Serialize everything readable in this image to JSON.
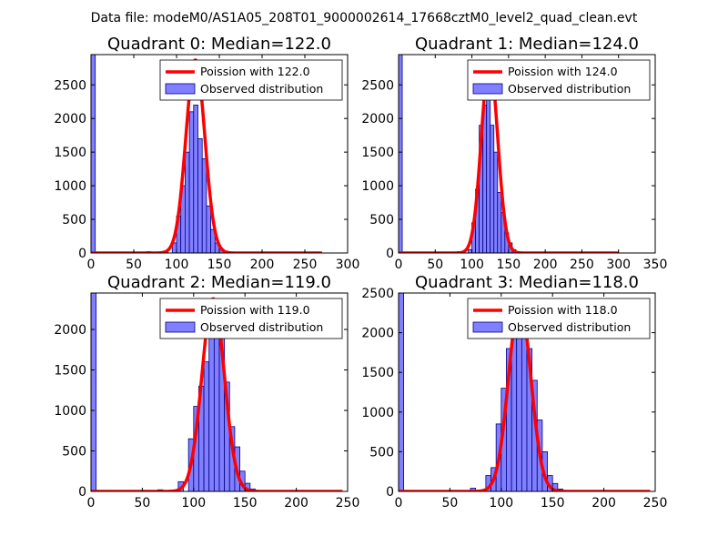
{
  "figure_title": "Data file: modeM0/AS1A05_208T01_9000002614_17668cztM0_level2_quad_clean.evt",
  "colors": {
    "fit": "#ff0000",
    "hist_fill": "#7f7fff",
    "hist_edge": "#00007f",
    "axes": "#000000"
  },
  "chart_data": [
    {
      "type": "bar",
      "title": "Quadrant 0: Median=122.0",
      "xlim": [
        0,
        300
      ],
      "ylim": [
        0,
        2950
      ],
      "xticks": [
        0,
        50,
        100,
        150,
        200,
        250,
        300
      ],
      "yticks": [
        0,
        500,
        1000,
        1500,
        2000,
        2500
      ],
      "legend": [
        "Poission with 122.0",
        "Observed distribution"
      ],
      "legend_position": "top-right",
      "median": 122.0,
      "peak": 2870,
      "fit_range": [
        0,
        270
      ],
      "bin_width": 5,
      "bins": [
        [
          0,
          2950
        ],
        [
          65,
          20
        ],
        [
          85,
          30
        ],
        [
          95,
          150
        ],
        [
          100,
          550
        ],
        [
          105,
          1000
        ],
        [
          110,
          1500
        ],
        [
          115,
          2100
        ],
        [
          120,
          2200
        ],
        [
          125,
          1700
        ],
        [
          130,
          1400
        ],
        [
          135,
          700
        ],
        [
          140,
          350
        ],
        [
          145,
          150
        ],
        [
          150,
          60
        ],
        [
          155,
          25
        ]
      ]
    },
    {
      "type": "bar",
      "title": "Quadrant 1: Median=124.0",
      "xlim": [
        0,
        350
      ],
      "ylim": [
        0,
        2950
      ],
      "xticks": [
        0,
        50,
        100,
        150,
        200,
        250,
        300,
        350
      ],
      "yticks": [
        0,
        500,
        1000,
        1500,
        2000,
        2500
      ],
      "legend": [
        "Poission with 124.0",
        "Observed distribution"
      ],
      "legend_position": "top-right",
      "median": 124.0,
      "peak": 2850,
      "fit_range": [
        0,
        300
      ],
      "bin_width": 5,
      "bins": [
        [
          0,
          2950
        ],
        [
          80,
          20
        ],
        [
          95,
          50
        ],
        [
          100,
          450
        ],
        [
          105,
          950
        ],
        [
          110,
          1900
        ],
        [
          115,
          2200
        ],
        [
          120,
          2500
        ],
        [
          125,
          1900
        ],
        [
          130,
          1500
        ],
        [
          135,
          900
        ],
        [
          140,
          600
        ],
        [
          145,
          300
        ],
        [
          150,
          150
        ],
        [
          155,
          50
        ]
      ]
    },
    {
      "type": "bar",
      "title": "Quadrant 2: Median=119.0",
      "xlim": [
        0,
        250
      ],
      "ylim": [
        0,
        2450
      ],
      "xticks": [
        0,
        50,
        100,
        150,
        200,
        250
      ],
      "yticks": [
        0,
        500,
        1000,
        1500,
        2000
      ],
      "legend": [
        "Poission with 119.0",
        "Observed distribution"
      ],
      "legend_position": "top-right",
      "median": 119.0,
      "peak": 2380,
      "fit_range": [
        0,
        245
      ],
      "bin_width": 5,
      "bins": [
        [
          0,
          2450
        ],
        [
          65,
          20
        ],
        [
          85,
          120
        ],
        [
          95,
          650
        ],
        [
          100,
          1050
        ],
        [
          105,
          1300
        ],
        [
          110,
          1600
        ],
        [
          115,
          1950
        ],
        [
          120,
          2100
        ],
        [
          125,
          1900
        ],
        [
          130,
          1350
        ],
        [
          135,
          800
        ],
        [
          140,
          550
        ],
        [
          145,
          250
        ],
        [
          150,
          100
        ],
        [
          155,
          30
        ]
      ]
    },
    {
      "type": "bar",
      "title": "Quadrant 3: Median=118.0",
      "xlim": [
        0,
        250
      ],
      "ylim": [
        0,
        2500
      ],
      "xticks": [
        0,
        50,
        100,
        150,
        200,
        250
      ],
      "yticks": [
        0,
        500,
        1000,
        1500,
        2000,
        2500
      ],
      "legend": [
        "Poission with 118.0",
        "Observed distribution"
      ],
      "legend_position": "top-right",
      "median": 118.0,
      "peak": 2380,
      "fit_range": [
        0,
        245
      ],
      "bin_width": 5,
      "bins": [
        [
          0,
          2500
        ],
        [
          70,
          40
        ],
        [
          85,
          200
        ],
        [
          90,
          300
        ],
        [
          95,
          850
        ],
        [
          100,
          1300
        ],
        [
          105,
          1800
        ],
        [
          110,
          2000
        ],
        [
          115,
          2200
        ],
        [
          120,
          1950
        ],
        [
          125,
          1800
        ],
        [
          130,
          1400
        ],
        [
          135,
          900
        ],
        [
          140,
          500
        ],
        [
          145,
          200
        ],
        [
          150,
          100
        ],
        [
          155,
          30
        ]
      ]
    }
  ]
}
